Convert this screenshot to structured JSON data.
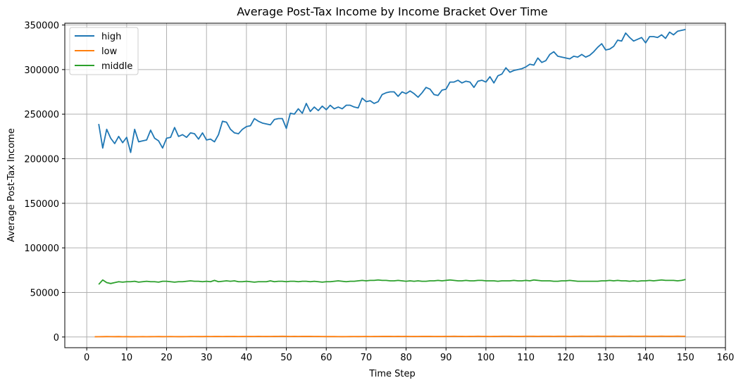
{
  "chart_data": {
    "type": "line",
    "title": "Average Post-Tax Income by Income Bracket Over Time",
    "xlabel": "Time Step",
    "ylabel": "Average Post-Tax Income",
    "xlim": [
      -5.5,
      160
    ],
    "ylim": [
      -12000,
      352000
    ],
    "xticks": [
      0,
      10,
      20,
      30,
      40,
      50,
      60,
      70,
      80,
      90,
      100,
      110,
      120,
      130,
      140,
      150,
      160
    ],
    "yticks": [
      0,
      50000,
      100000,
      150000,
      200000,
      250000,
      300000,
      350000
    ],
    "grid": true,
    "legend_position": "upper-left",
    "series": [
      {
        "name": "high",
        "color": "#1f77b4",
        "x_start": 3,
        "values": [
          239000,
          212000,
          233000,
          223000,
          217000,
          225000,
          218000,
          224000,
          207000,
          233000,
          219000,
          220000,
          221000,
          232000,
          223000,
          220000,
          212000,
          223000,
          224000,
          235000,
          225000,
          227000,
          224000,
          229000,
          228000,
          222000,
          229000,
          221000,
          222000,
          219000,
          227000,
          242000,
          241000,
          233000,
          229000,
          228000,
          233000,
          236000,
          237000,
          245000,
          242000,
          240000,
          239000,
          238000,
          244000,
          245000,
          245000,
          234000,
          251000,
          250000,
          256000,
          251000,
          262000,
          253000,
          258000,
          254000,
          259000,
          255000,
          260000,
          256000,
          258000,
          256000,
          260000,
          260000,
          258000,
          257000,
          268000,
          264000,
          265000,
          262000,
          264000,
          272000,
          274000,
          275000,
          275000,
          270000,
          275000,
          273000,
          276000,
          273000,
          269000,
          274000,
          280000,
          278000,
          272000,
          271000,
          277000,
          278000,
          286000,
          286000,
          288000,
          285000,
          287000,
          286000,
          280000,
          287000,
          288000,
          286000,
          292000,
          285000,
          293000,
          295000,
          302000,
          297000,
          299000,
          300000,
          301000,
          303000,
          306000,
          305000,
          313000,
          308000,
          310000,
          317000,
          320000,
          315000,
          314000,
          313000,
          312000,
          315000,
          314000,
          317000,
          314000,
          316000,
          320000,
          325000,
          329000,
          322000,
          323000,
          326000,
          333000,
          332000,
          341000,
          336000,
          332000,
          334000,
          336000,
          330000,
          337000,
          337000,
          336000,
          339000,
          335000,
          342000,
          339000,
          343000,
          344000,
          345000
        ]
      },
      {
        "name": "low",
        "color": "#ff7f0e",
        "x_start": 2,
        "values": [
          300,
          350,
          400,
          500,
          450,
          400,
          500,
          350,
          400,
          300,
          300,
          350,
          400,
          350,
          400,
          450,
          500,
          400,
          450,
          500,
          450,
          400,
          400,
          450,
          500,
          550,
          500,
          500,
          600,
          550,
          600,
          650,
          550,
          600,
          650,
          600,
          550,
          600,
          650,
          600,
          650,
          700,
          650,
          600,
          650,
          700,
          750,
          800,
          700,
          650,
          700,
          650,
          700,
          750,
          700,
          650,
          600,
          550,
          500,
          500,
          550,
          450,
          400,
          450,
          500,
          550,
          500,
          550,
          600,
          550,
          600,
          650,
          700,
          750,
          700,
          650,
          700,
          650,
          700,
          650,
          600,
          650,
          700,
          750,
          700,
          650,
          600,
          650,
          700,
          750,
          800,
          750,
          700,
          650,
          700,
          750,
          800,
          750,
          700,
          650,
          700,
          750,
          800,
          850,
          800,
          750,
          700,
          750,
          800,
          850,
          800,
          750,
          800,
          850,
          800,
          750,
          800,
          850,
          800,
          750,
          800,
          850,
          900,
          850,
          800,
          850,
          900,
          850,
          800,
          850,
          900,
          850,
          800,
          850,
          900,
          850,
          800,
          850,
          900,
          850,
          800,
          850,
          900,
          850,
          800,
          850,
          900,
          850,
          800
        ]
      },
      {
        "name": "middle",
        "color": "#2ca02c",
        "x_start": 3,
        "values": [
          59000,
          64000,
          61000,
          60000,
          61000,
          62000,
          61500,
          62000,
          62000,
          62500,
          61500,
          62000,
          62500,
          62000,
          62000,
          61500,
          62500,
          62500,
          62000,
          61500,
          62000,
          62000,
          62500,
          63000,
          62500,
          62500,
          62000,
          62500,
          62000,
          63500,
          62000,
          62500,
          63000,
          62500,
          63000,
          62000,
          62000,
          62500,
          62000,
          61500,
          62000,
          62000,
          62000,
          63000,
          62000,
          62500,
          62500,
          62000,
          62500,
          62500,
          62000,
          62500,
          62500,
          62000,
          62500,
          62000,
          61500,
          62000,
          62000,
          62500,
          63000,
          62500,
          62000,
          62500,
          62500,
          63000,
          63500,
          63000,
          63500,
          63500,
          64000,
          63500,
          63500,
          63000,
          63000,
          63500,
          63000,
          62500,
          63000,
          62500,
          63000,
          62500,
          62500,
          63000,
          63000,
          63500,
          63000,
          63500,
          64000,
          63500,
          63000,
          63000,
          63500,
          63000,
          63000,
          63500,
          63500,
          63000,
          63000,
          63000,
          62500,
          63000,
          63000,
          63000,
          63500,
          63000,
          63000,
          63500,
          63000,
          64000,
          63500,
          63000,
          63000,
          63000,
          62500,
          62500,
          63000,
          63000,
          63500,
          63000,
          62500,
          62500,
          62500,
          62500,
          62500,
          62500,
          63000,
          63000,
          63500,
          63000,
          63500,
          63000,
          63000,
          62500,
          63000,
          62500,
          63000,
          63000,
          63500,
          63000,
          63500,
          64000,
          63500,
          63500,
          63500,
          63000,
          63500,
          64500
        ]
      }
    ]
  }
}
